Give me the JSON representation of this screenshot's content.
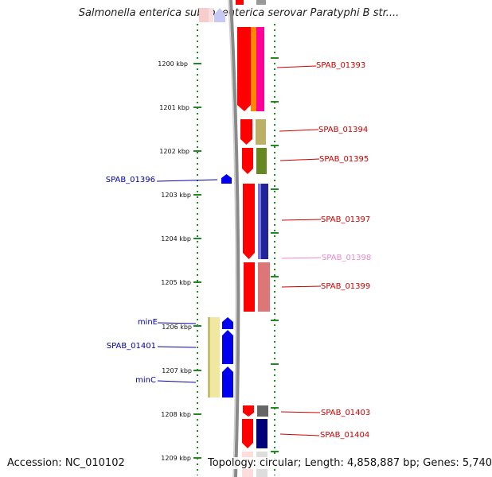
{
  "title": "Salmonella enterica subsp. enterica serovar Paratyphi B str....",
  "footer": {
    "accession": "Accession: NC_010102",
    "topology": "Topology: circular; Length: 4,858,887 bp; Genes: 5,740"
  },
  "ruler": {
    "labels": [
      "1200 kbp",
      "1201 kbp",
      "1202 kbp",
      "1203 kbp",
      "1204 kbp",
      "1205 kbp",
      "1206 kbp",
      "1207 kbp",
      "1208 kbp",
      "1209 kbp"
    ]
  },
  "colors": {
    "forward_label": "#cc0000",
    "reverse_label": "#0000aa",
    "faded_label": "#ee88cc",
    "backbone": "#8a8a8a",
    "tick": "#228822"
  },
  "labels_right": [
    {
      "name": "SPAB_01393"
    },
    {
      "name": "SPAB_01394"
    },
    {
      "name": "SPAB_01395"
    },
    {
      "name": "SPAB_01397"
    },
    {
      "name": "SPAB_01398"
    },
    {
      "name": "SPAB_01399"
    },
    {
      "name": "SPAB_01403"
    },
    {
      "name": "SPAB_01404"
    }
  ],
  "labels_left": [
    {
      "name": "SPAB_01396"
    },
    {
      "name": "minE"
    },
    {
      "name": "SPAB_01401"
    },
    {
      "name": "minC"
    }
  ]
}
